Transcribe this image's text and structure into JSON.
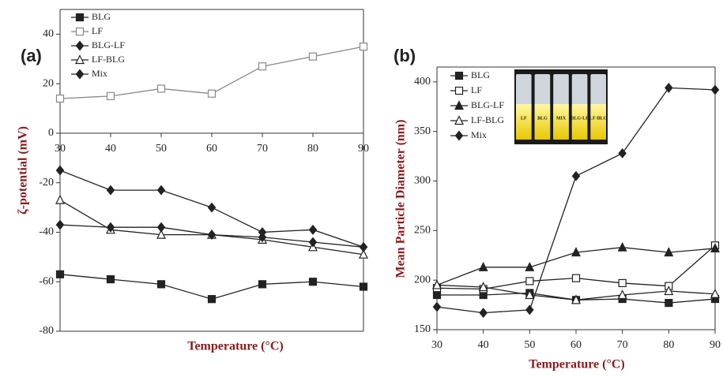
{
  "chart_data": [
    {
      "type": "line",
      "panel_label": "(a)",
      "y_label": "ζ-potential (mV)",
      "x_label": "Temperature (°C)",
      "x": [
        30,
        40,
        50,
        60,
        70,
        80,
        90
      ],
      "xlim": [
        30,
        90
      ],
      "xticks": [
        30,
        40,
        50,
        60,
        70,
        80,
        90
      ],
      "ylim": [
        -80,
        50
      ],
      "yticks": [
        40,
        20,
        0,
        -20,
        -40,
        -60,
        -80
      ],
      "series": [
        {
          "name": "BLG",
          "color": "#222222",
          "marker": "square-filled",
          "values": [
            -57,
            -59,
            -61,
            -67,
            -61,
            -60,
            -62
          ]
        },
        {
          "name": "LF",
          "color": "#888888",
          "marker": "square-open",
          "values": [
            14,
            15,
            18,
            16,
            27,
            31,
            35
          ]
        },
        {
          "name": "BLG-LF",
          "color": "#222222",
          "marker": "diamond-filled",
          "values": [
            -15,
            -23,
            -23,
            -30,
            -40,
            -39,
            -46
          ]
        },
        {
          "name": "LF-BLG",
          "color": "#222222",
          "marker": "triangle-open",
          "values": [
            -27,
            -39,
            -41,
            -41,
            -43,
            -46,
            -49
          ]
        },
        {
          "name": "Mix",
          "color": "#222222",
          "marker": "diamond-filled",
          "values": [
            -37,
            -38,
            -38,
            -41,
            -42,
            -44,
            -46
          ]
        }
      ]
    },
    {
      "type": "line",
      "panel_label": "(b)",
      "y_label": "Mean Particle Diameter (nm)",
      "x_label": "Temperature (°C)",
      "x": [
        30,
        40,
        50,
        60,
        70,
        80,
        90
      ],
      "xlim": [
        30,
        90
      ],
      "xticks": [
        30,
        40,
        50,
        60,
        70,
        80,
        90
      ],
      "ylim": [
        150,
        415
      ],
      "yticks": [
        150,
        200,
        250,
        300,
        350,
        400
      ],
      "inset_labels": [
        "LF",
        "BLG",
        "MIX",
        "BLG-LF",
        "LF-BLG"
      ],
      "series": [
        {
          "name": "BLG",
          "color": "#222222",
          "marker": "square-filled",
          "values": [
            185,
            185,
            187,
            180,
            181,
            177,
            181
          ]
        },
        {
          "name": "LF",
          "color": "#222222",
          "marker": "square-open",
          "values": [
            192,
            191,
            199,
            202,
            197,
            194,
            235
          ]
        },
        {
          "name": "BLG-LF",
          "color": "#222222",
          "marker": "triangle-filled",
          "values": [
            195,
            213,
            213,
            228,
            233,
            228,
            232
          ]
        },
        {
          "name": "LF-BLG",
          "color": "#222222",
          "marker": "triangle-open",
          "values": [
            195,
            193,
            185,
            180,
            185,
            189,
            186
          ]
        },
        {
          "name": "Mix",
          "color": "#222222",
          "marker": "diamond-filled",
          "values": [
            173,
            167,
            170,
            305,
            328,
            394,
            392
          ]
        }
      ]
    }
  ]
}
